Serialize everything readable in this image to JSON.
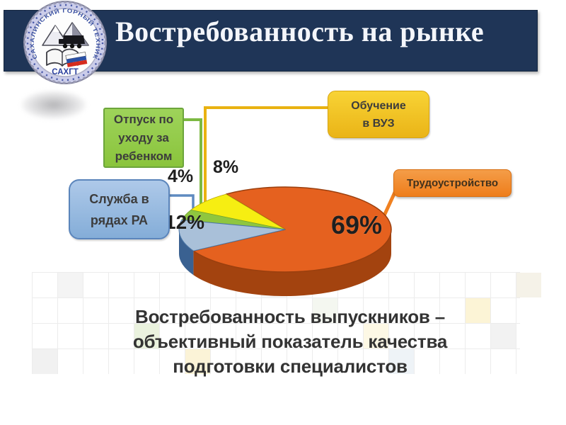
{
  "header": {
    "title": "Востребованность на рынке",
    "bar_color": "#1f3557",
    "text_color": "#f4f6fb"
  },
  "logo": {
    "ring_text": "САХАЛИНСКИЙ ГОРНЫЙ ТЕХНИКУМ",
    "abbr": "САХГТ"
  },
  "callouts": [
    {
      "id": "leave",
      "label": "Отпуск по уходу за ребенком",
      "lines": [
        "Отпуск по",
        "уходу за",
        "ребенком"
      ],
      "accent": "#7cb942"
    },
    {
      "id": "university",
      "label": "Обучение в ВУЗ",
      "lines": [
        "Обучение",
        "в ВУЗ"
      ],
      "accent": "#e9b211"
    },
    {
      "id": "army",
      "label": "Служба в рядах РА",
      "lines": [
        "Служба в",
        "рядах РА"
      ],
      "accent": "#5e8ac0"
    },
    {
      "id": "employment",
      "label": "Трудоустройство",
      "lines": [
        "Трудоустройство"
      ],
      "accent": "#f08121"
    }
  ],
  "chart_data": {
    "type": "pie",
    "style": "3d-exploded-left",
    "title": "Востребованность выпускников – объективный показатель качества подготовки специалистов",
    "legend_position": "callouts",
    "slices": [
      {
        "label": "Трудоустройство",
        "value": 69,
        "pct_label": "69%",
        "color": "#e5611f",
        "side_color": "#a3430f"
      },
      {
        "label": "Служба в рядах РА",
        "value": 12,
        "pct_label": "12%",
        "color": "#a9c0d9",
        "side_color": "#3a6191"
      },
      {
        "label": "Обучение в ВУЗ",
        "value": 8,
        "pct_label": "8%",
        "color": "#f6ee12",
        "side_color": "#b8a70c"
      },
      {
        "label": "Отпуск по уходу за ребенком",
        "value": 4,
        "pct_label": "4%",
        "color": "#8fc63f",
        "side_color": "#5f8f2a"
      }
    ]
  },
  "caption": {
    "lines": [
      "Востребованность выпускников –",
      "объективный показатель качества",
      "подготовки специалистов"
    ]
  }
}
